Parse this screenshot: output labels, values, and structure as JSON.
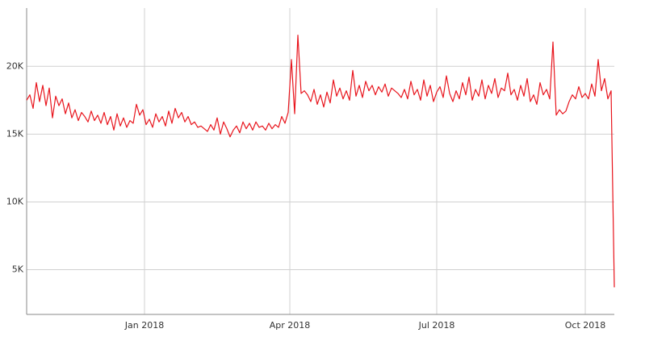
{
  "chart_data": {
    "type": "line",
    "x": [
      0,
      2,
      4,
      6,
      8,
      10,
      12,
      14,
      16,
      18,
      20,
      22,
      24,
      26,
      28,
      30,
      32,
      34,
      36,
      38,
      40,
      42,
      44,
      46,
      48,
      50,
      52,
      54,
      56,
      58,
      60,
      62,
      64,
      66,
      68,
      70,
      72,
      74,
      76,
      78,
      80,
      82,
      84,
      86,
      88,
      90,
      92,
      94,
      96,
      98,
      100,
      102,
      104,
      106,
      108,
      110,
      112,
      114,
      116,
      118,
      120,
      122,
      124,
      126,
      128,
      130,
      132,
      134,
      136,
      138,
      140,
      142,
      144,
      146,
      148,
      150,
      152,
      154,
      156,
      158,
      160,
      162,
      164,
      166,
      168,
      170,
      172,
      174,
      176,
      178,
      180,
      182,
      184,
      186,
      188,
      190,
      192,
      194,
      196,
      198,
      200,
      202,
      204,
      206,
      208,
      210,
      212,
      214,
      216,
      218,
      220,
      222,
      224,
      226,
      228,
      230,
      232,
      234,
      236,
      238,
      240,
      242,
      244,
      246,
      248,
      250,
      252,
      254,
      256,
      258,
      260,
      262,
      264,
      266,
      268,
      270,
      272,
      274,
      276,
      278,
      280,
      282,
      284,
      286,
      288,
      290,
      292,
      294,
      296,
      298,
      300,
      302,
      304,
      306,
      308,
      310,
      312,
      314,
      316,
      318,
      320,
      322,
      324,
      326,
      328,
      330,
      332,
      334,
      336,
      338,
      340,
      342,
      344,
      346,
      348,
      350,
      352,
      354,
      356,
      358,
      360,
      362,
      364
    ],
    "series": [
      {
        "color": "#e8141c",
        "values": [
          17500,
          17900,
          16900,
          18800,
          17400,
          18600,
          17100,
          18400,
          16200,
          17800,
          17100,
          17600,
          16500,
          17300,
          16200,
          16800,
          16000,
          16600,
          16300,
          15900,
          16700,
          16000,
          16400,
          15800,
          16600,
          15700,
          16300,
          15300,
          16500,
          15600,
          16200,
          15500,
          16000,
          15800,
          17200,
          16400,
          16800,
          15700,
          16100,
          15500,
          16500,
          15900,
          16300,
          15600,
          16700,
          15800,
          16900,
          16200,
          16600,
          15900,
          16300,
          15700,
          15900,
          15500,
          15600,
          15400,
          15200,
          15700,
          15300,
          16200,
          15000,
          15900,
          15400,
          14800,
          15300,
          15600,
          15100,
          15900,
          15400,
          15800,
          15300,
          15900,
          15500,
          15600,
          15300,
          15800,
          15400,
          15700,
          15500,
          16300,
          15800,
          16600,
          20500,
          16500,
          22300,
          18000,
          18200,
          17900,
          17400,
          18300,
          17200,
          17900,
          17000,
          18100,
          17300,
          19000,
          17800,
          18400,
          17600,
          18200,
          17500,
          19700,
          17800,
          18600,
          17700,
          18900,
          18200,
          18600,
          17900,
          18500,
          18100,
          18700,
          17800,
          18400,
          18200,
          18000,
          17700,
          18300,
          17600,
          18900,
          17900,
          18300,
          17500,
          19000,
          17800,
          18600,
          17400,
          18100,
          18500,
          17700,
          19300,
          18000,
          17400,
          18200,
          17600,
          18800,
          17900,
          19200,
          17500,
          18300,
          17800,
          19000,
          17600,
          18600,
          18000,
          19100,
          17700,
          18400,
          18200,
          19500,
          17900,
          18300,
          17500,
          18600,
          17800,
          19100,
          17400,
          17900,
          17200,
          18800,
          17900,
          18300,
          17600,
          21800,
          16400,
          16800,
          16500,
          16700,
          17400,
          17900,
          17600,
          18500,
          17700,
          18000,
          17600,
          18700,
          17800,
          20500,
          18200,
          19100,
          17600,
          18200,
          3700
        ]
      }
    ],
    "xlim": [
      0,
      364
    ],
    "xticks": [
      {
        "value": 73,
        "label": "Jan 2018"
      },
      {
        "value": 163,
        "label": "Apr 2018"
      },
      {
        "value": 254,
        "label": "Jul 2018"
      },
      {
        "value": 346,
        "label": "Oct 2018"
      }
    ],
    "ylim": [
      1700,
      24300
    ],
    "yticks": [
      {
        "value": 5000,
        "label": "5K"
      },
      {
        "value": 10000,
        "label": "10K"
      },
      {
        "value": 15000,
        "label": "15K"
      },
      {
        "value": 20000,
        "label": "20K"
      }
    ],
    "grid": true
  }
}
